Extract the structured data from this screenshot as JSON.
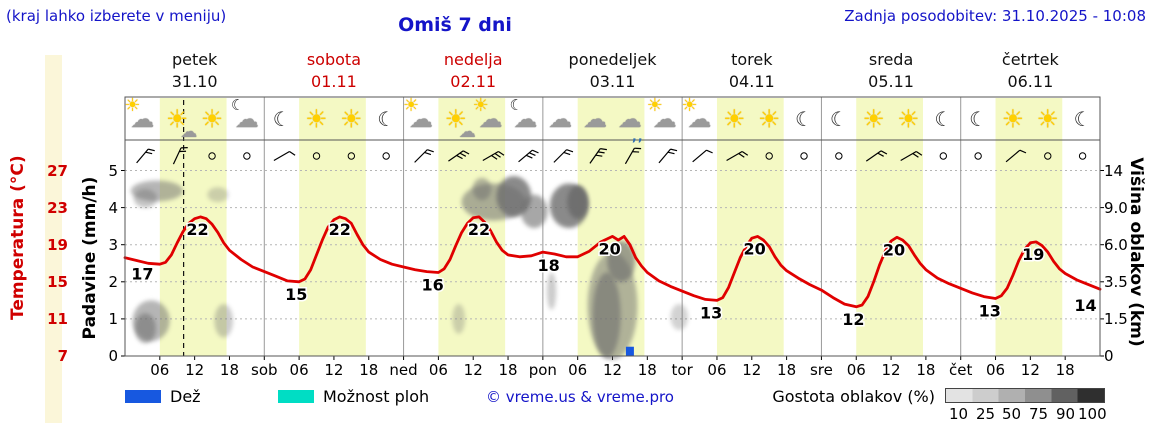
{
  "header": {
    "hint": "(kraj lahko izberete v meniju)",
    "title": "Omiš 7 dni",
    "updated": "Zadnja posodobitev: 31.10.2025 - 10:08"
  },
  "days": [
    {
      "name": "petek",
      "date": "31.10",
      "color": "black"
    },
    {
      "name": "sobota",
      "date": "01.11",
      "color": "red"
    },
    {
      "name": "nedelja",
      "date": "02.11",
      "color": "red"
    },
    {
      "name": "ponedeljek",
      "date": "03.11",
      "color": "black"
    },
    {
      "name": "torek",
      "date": "04.11",
      "color": "black"
    },
    {
      "name": "sreda",
      "date": "05.11",
      "color": "black"
    },
    {
      "name": "četrtek",
      "date": "06.11",
      "color": "black"
    }
  ],
  "axes": {
    "temperature": {
      "label": "Temperatura (°C)",
      "ticks": [
        "27",
        "23",
        "19",
        "15",
        "11",
        "7"
      ]
    },
    "precipitation": {
      "label": "Padavine (mm/h)",
      "ticks": [
        "5",
        "4",
        "3",
        "2",
        "1",
        "0"
      ]
    },
    "cloud_height": {
      "label": "Višina oblakov (km)",
      "ticks": [
        "14",
        "9.0",
        "6.0",
        "3.5",
        "1.5",
        "0"
      ]
    },
    "x_ticks": [
      {
        "t": 6,
        "label": "06"
      },
      {
        "t": 12,
        "label": "12"
      },
      {
        "t": 18,
        "label": "18"
      },
      {
        "t": 24,
        "label": "sob"
      },
      {
        "t": 30,
        "label": "06"
      },
      {
        "t": 36,
        "label": "12"
      },
      {
        "t": 42,
        "label": "18"
      },
      {
        "t": 48,
        "label": "ned"
      },
      {
        "t": 54,
        "label": "06"
      },
      {
        "t": 60,
        "label": "12"
      },
      {
        "t": 66,
        "label": "18"
      },
      {
        "t": 72,
        "label": "pon"
      },
      {
        "t": 78,
        "label": "06"
      },
      {
        "t": 84,
        "label": "12"
      },
      {
        "t": 90,
        "label": "18"
      },
      {
        "t": 96,
        "label": "tor"
      },
      {
        "t": 102,
        "label": "06"
      },
      {
        "t": 108,
        "label": "12"
      },
      {
        "t": 114,
        "label": "18"
      },
      {
        "t": 120,
        "label": "sre"
      },
      {
        "t": 126,
        "label": "06"
      },
      {
        "t": 132,
        "label": "12"
      },
      {
        "t": 138,
        "label": "18"
      },
      {
        "t": 144,
        "label": "čet"
      },
      {
        "t": 150,
        "label": "06"
      },
      {
        "t": 156,
        "label": "12"
      },
      {
        "t": 162,
        "label": "18"
      }
    ]
  },
  "legend": {
    "rain_label": "Dež",
    "rain_color": "#1758e0",
    "showers_label": "Možnost ploh",
    "showers_color": "#00ddc4",
    "copyright": "© vreme.us & vreme.pro",
    "cloud_density_label": "Gostota oblakov (%)",
    "cloud_density_ticks": [
      "10",
      "25",
      "50",
      "75",
      "90",
      "100"
    ],
    "cloud_density_colors": [
      "#e3e3e3",
      "#cdcdcd",
      "#b0b0b0",
      "#8f8f8f",
      "#616161",
      "#2f2f2f"
    ]
  },
  "chart_data": {
    "type": "line",
    "title": "Omiš 7 dni",
    "x_unit": "hours from petek 31.10 00:00",
    "x_domain_hours": [
      0,
      168
    ],
    "temp_axis_c": {
      "min": 7,
      "max": 27,
      "step_per_gridline": 4
    },
    "precip_axis_mm_h": {
      "min": 0,
      "max": 5
    },
    "cloud_height_axis_km": [
      0,
      1.5,
      3.5,
      6.0,
      9.0,
      14
    ],
    "current_time_hour": 10.1,
    "daylight_hours": {
      "from": 6,
      "to": 17.5
    },
    "colors": {
      "temperature": "#e00000",
      "rain_bar": "#1758e0",
      "daylight_band": "#f4f9c4",
      "cloud": "#6e6e6e"
    },
    "temperature_c": [
      [
        0,
        17.6
      ],
      [
        2,
        17.3
      ],
      [
        4,
        17.0
      ],
      [
        6,
        16.9
      ],
      [
        7,
        17.1
      ],
      [
        8,
        17.9
      ],
      [
        9,
        19.2
      ],
      [
        10,
        20.4
      ],
      [
        11,
        21.3
      ],
      [
        12,
        21.8
      ],
      [
        13,
        22.0
      ],
      [
        14,
        21.8
      ],
      [
        15,
        21.2
      ],
      [
        16,
        20.3
      ],
      [
        17,
        19.2
      ],
      [
        18,
        18.4
      ],
      [
        20,
        17.4
      ],
      [
        22,
        16.6
      ],
      [
        24,
        16.1
      ],
      [
        26,
        15.6
      ],
      [
        28,
        15.1
      ],
      [
        30,
        15.0
      ],
      [
        31,
        15.3
      ],
      [
        32,
        16.3
      ],
      [
        33,
        17.9
      ],
      [
        34,
        19.5
      ],
      [
        35,
        20.9
      ],
      [
        36,
        21.7
      ],
      [
        37,
        22.0
      ],
      [
        38,
        21.8
      ],
      [
        39,
        21.3
      ],
      [
        40,
        20.1
      ],
      [
        41,
        19.0
      ],
      [
        42,
        18.2
      ],
      [
        44,
        17.4
      ],
      [
        46,
        16.9
      ],
      [
        48,
        16.6
      ],
      [
        50,
        16.3
      ],
      [
        52,
        16.1
      ],
      [
        54,
        16.0
      ],
      [
        55,
        16.4
      ],
      [
        56,
        17.4
      ],
      [
        57,
        18.9
      ],
      [
        58,
        20.3
      ],
      [
        59,
        21.3
      ],
      [
        60,
        21.9
      ],
      [
        61,
        22.0
      ],
      [
        62,
        21.4
      ],
      [
        63,
        20.5
      ],
      [
        64,
        19.3
      ],
      [
        65,
        18.4
      ],
      [
        66,
        17.9
      ],
      [
        68,
        17.7
      ],
      [
        70,
        17.8
      ],
      [
        72,
        18.2
      ],
      [
        74,
        18.0
      ],
      [
        76,
        17.7
      ],
      [
        78,
        17.7
      ],
      [
        80,
        18.3
      ],
      [
        82,
        19.3
      ],
      [
        84,
        19.9
      ],
      [
        85,
        19.5
      ],
      [
        86,
        19.9
      ],
      [
        87,
        19.0
      ],
      [
        88,
        17.6
      ],
      [
        89,
        16.7
      ],
      [
        90,
        16.0
      ],
      [
        92,
        15.1
      ],
      [
        94,
        14.5
      ],
      [
        96,
        14.0
      ],
      [
        98,
        13.5
      ],
      [
        100,
        13.1
      ],
      [
        102,
        13.0
      ],
      [
        103,
        13.3
      ],
      [
        104,
        14.4
      ],
      [
        105,
        16.0
      ],
      [
        106,
        17.6
      ],
      [
        107,
        18.8
      ],
      [
        108,
        19.7
      ],
      [
        109,
        19.9
      ],
      [
        110,
        19.5
      ],
      [
        111,
        18.8
      ],
      [
        112,
        17.7
      ],
      [
        113,
        16.8
      ],
      [
        114,
        16.2
      ],
      [
        116,
        15.4
      ],
      [
        118,
        14.7
      ],
      [
        120,
        14.1
      ],
      [
        122,
        13.3
      ],
      [
        124,
        12.6
      ],
      [
        126,
        12.3
      ],
      [
        127,
        12.5
      ],
      [
        128,
        13.4
      ],
      [
        129,
        15.0
      ],
      [
        130,
        16.8
      ],
      [
        131,
        18.3
      ],
      [
        132,
        19.4
      ],
      [
        133,
        19.8
      ],
      [
        134,
        19.5
      ],
      [
        135,
        18.9
      ],
      [
        136,
        17.9
      ],
      [
        137,
        17.0
      ],
      [
        138,
        16.3
      ],
      [
        140,
        15.4
      ],
      [
        142,
        14.8
      ],
      [
        144,
        14.3
      ],
      [
        146,
        13.8
      ],
      [
        148,
        13.4
      ],
      [
        150,
        13.2
      ],
      [
        151,
        13.5
      ],
      [
        152,
        14.3
      ],
      [
        153,
        15.7
      ],
      [
        154,
        17.3
      ],
      [
        155,
        18.5
      ],
      [
        156,
        19.2
      ],
      [
        157,
        19.3
      ],
      [
        158,
        18.9
      ],
      [
        159,
        18.2
      ],
      [
        160,
        17.2
      ],
      [
        161,
        16.4
      ],
      [
        162,
        15.9
      ],
      [
        164,
        15.2
      ],
      [
        166,
        14.7
      ],
      [
        168,
        14.2
      ]
    ],
    "temperature_labels": [
      {
        "t": 3,
        "temp": 17.2,
        "text": "17"
      },
      {
        "t": 12.5,
        "temp": 22,
        "text": "22"
      },
      {
        "t": 29.5,
        "temp": 15,
        "text": "15"
      },
      {
        "t": 37,
        "temp": 22,
        "text": "22"
      },
      {
        "t": 53,
        "temp": 16,
        "text": "16"
      },
      {
        "t": 61,
        "temp": 22,
        "text": "22"
      },
      {
        "t": 73,
        "temp": 18.1,
        "text": "18"
      },
      {
        "t": 83.5,
        "temp": 19.9,
        "text": "20"
      },
      {
        "t": 101,
        "temp": 13,
        "text": "13"
      },
      {
        "t": 108.5,
        "temp": 19.9,
        "text": "20"
      },
      {
        "t": 125.5,
        "temp": 12.3,
        "text": "12"
      },
      {
        "t": 132.5,
        "temp": 19.8,
        "text": "20"
      },
      {
        "t": 149,
        "temp": 13.2,
        "text": "13"
      },
      {
        "t": 156.5,
        "temp": 19.3,
        "text": "19"
      },
      {
        "t": 165.5,
        "temp": 13.8,
        "text": "14"
      }
    ],
    "precipitation_bars": [
      {
        "t": 87,
        "mm_h": 0.25
      }
    ],
    "clouds": [
      {
        "t": 5.5,
        "level": 4.45,
        "rx": 4.5,
        "ry": 0.28,
        "opacity": 0.5
      },
      {
        "t": 3.5,
        "level": 4.25,
        "rx": 2.0,
        "ry": 0.25,
        "opacity": 0.4
      },
      {
        "t": 16,
        "level": 4.35,
        "rx": 1.8,
        "ry": 0.2,
        "opacity": 0.3
      },
      {
        "t": 4.5,
        "level": 0.95,
        "rx": 3.2,
        "ry": 0.55,
        "opacity": 0.5
      },
      {
        "t": 3.5,
        "level": 0.75,
        "rx": 1.8,
        "ry": 0.4,
        "opacity": 0.55
      },
      {
        "t": 17,
        "level": 0.95,
        "rx": 1.6,
        "ry": 0.45,
        "opacity": 0.35
      },
      {
        "t": 57.5,
        "level": 1.0,
        "rx": 1.1,
        "ry": 0.4,
        "opacity": 0.3
      },
      {
        "t": 61.5,
        "level": 4.5,
        "rx": 1.6,
        "ry": 0.3,
        "opacity": 0.5
      },
      {
        "t": 63.5,
        "level": 4.15,
        "rx": 5.5,
        "ry": 0.5,
        "opacity": 0.55
      },
      {
        "t": 67,
        "level": 4.3,
        "rx": 3.0,
        "ry": 0.55,
        "opacity": 0.8
      },
      {
        "t": 70.5,
        "level": 3.9,
        "rx": 2.3,
        "ry": 0.45,
        "opacity": 0.6
      },
      {
        "t": 76.5,
        "level": 4.05,
        "rx": 3.3,
        "ry": 0.6,
        "opacity": 0.8
      },
      {
        "t": 78,
        "level": 4.15,
        "rx": 1.8,
        "ry": 0.45,
        "opacity": 0.95
      },
      {
        "t": 73.5,
        "level": 1.75,
        "rx": 0.8,
        "ry": 0.5,
        "opacity": 0.35
      },
      {
        "t": 84,
        "level": 1.35,
        "rx": 4.3,
        "ry": 1.45,
        "opacity": 0.5
      },
      {
        "t": 83,
        "level": 1.1,
        "rx": 2.4,
        "ry": 1.15,
        "opacity": 0.6
      },
      {
        "t": 85.5,
        "level": 2.55,
        "rx": 2.4,
        "ry": 0.55,
        "opacity": 0.65
      },
      {
        "t": 95.5,
        "level": 1.05,
        "rx": 1.5,
        "ry": 0.35,
        "opacity": 0.3
      }
    ],
    "weather_icons": [
      {
        "t": 3,
        "type": "cloud-sun"
      },
      {
        "t": 9,
        "type": "sun-cloud"
      },
      {
        "t": 15,
        "type": "sun"
      },
      {
        "t": 21,
        "type": "moon-cloud"
      },
      {
        "t": 27,
        "type": "moon"
      },
      {
        "t": 33,
        "type": "sun"
      },
      {
        "t": 39,
        "type": "sun"
      },
      {
        "t": 45,
        "type": "moon"
      },
      {
        "t": 51,
        "type": "cloud-sun"
      },
      {
        "t": 57,
        "type": "sun-cloud"
      },
      {
        "t": 63,
        "type": "cloud-sun"
      },
      {
        "t": 69,
        "type": "moon-cloud"
      },
      {
        "t": 75,
        "type": "cloud"
      },
      {
        "t": 81,
        "type": "cloud"
      },
      {
        "t": 87,
        "type": "cloud-rain"
      },
      {
        "t": 93,
        "type": "cloud-sun"
      },
      {
        "t": 99,
        "type": "cloud-sun"
      },
      {
        "t": 105,
        "type": "sun"
      },
      {
        "t": 111,
        "type": "sun"
      },
      {
        "t": 117,
        "type": "moon"
      },
      {
        "t": 123,
        "type": "moon"
      },
      {
        "t": 129,
        "type": "sun"
      },
      {
        "t": 135,
        "type": "sun"
      },
      {
        "t": 141,
        "type": "moon"
      },
      {
        "t": 147,
        "type": "moon"
      },
      {
        "t": 153,
        "type": "sun"
      },
      {
        "t": 159,
        "type": "sun"
      },
      {
        "t": 165,
        "type": "moon"
      }
    ],
    "wind": [
      {
        "t": 3,
        "type": "barb",
        "dir": 40,
        "feathers": 2
      },
      {
        "t": 9,
        "type": "barb",
        "dir": 25,
        "feathers": 2
      },
      {
        "t": 15,
        "type": "calm"
      },
      {
        "t": 21,
        "type": "calm"
      },
      {
        "t": 27,
        "type": "barb",
        "dir": 60,
        "feathers": 1
      },
      {
        "t": 33,
        "type": "calm"
      },
      {
        "t": 39,
        "type": "calm"
      },
      {
        "t": 45,
        "type": "calm"
      },
      {
        "t": 51,
        "type": "barb",
        "dir": 45,
        "feathers": 2
      },
      {
        "t": 57,
        "type": "barb",
        "dir": 55,
        "feathers": 3
      },
      {
        "t": 63,
        "type": "barb",
        "dir": 60,
        "feathers": 3
      },
      {
        "t": 69,
        "type": "barb",
        "dir": 50,
        "feathers": 3
      },
      {
        "t": 75,
        "type": "barb",
        "dir": 45,
        "feathers": 2
      },
      {
        "t": 81,
        "type": "barb",
        "dir": 35,
        "feathers": 3
      },
      {
        "t": 87,
        "type": "barb",
        "dir": 30,
        "feathers": 2
      },
      {
        "t": 93,
        "type": "barb",
        "dir": 40,
        "feathers": 2
      },
      {
        "t": 99,
        "type": "barb",
        "dir": 50,
        "feathers": 1
      },
      {
        "t": 105,
        "type": "barb",
        "dir": 60,
        "feathers": 2
      },
      {
        "t": 111,
        "type": "calm"
      },
      {
        "t": 117,
        "type": "calm"
      },
      {
        "t": 123,
        "type": "calm"
      },
      {
        "t": 129,
        "type": "barb",
        "dir": 55,
        "feathers": 2
      },
      {
        "t": 135,
        "type": "barb",
        "dir": 60,
        "feathers": 2
      },
      {
        "t": 141,
        "type": "calm"
      },
      {
        "t": 147,
        "type": "calm"
      },
      {
        "t": 153,
        "type": "barb",
        "dir": 50,
        "feathers": 1
      },
      {
        "t": 159,
        "type": "calm"
      },
      {
        "t": 165,
        "type": "calm"
      }
    ]
  }
}
